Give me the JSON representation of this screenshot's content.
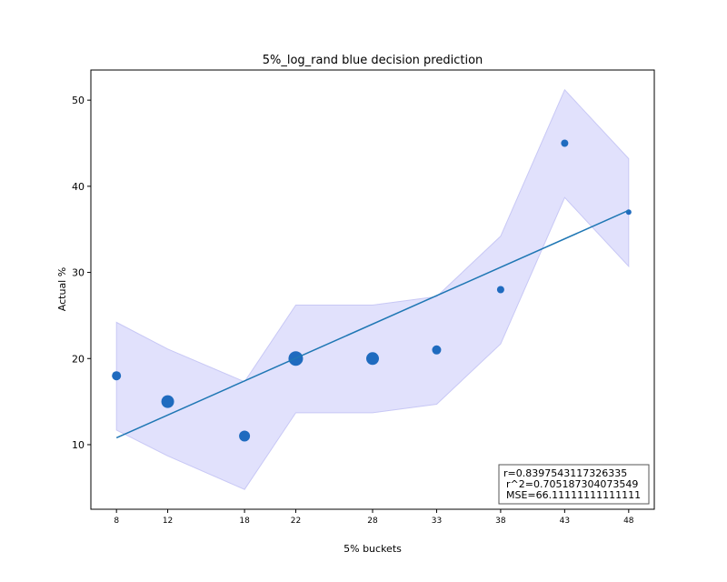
{
  "chart_data": {
    "type": "scatter",
    "title": "5%_log_rand blue decision prediction",
    "xlabel": "5% buckets",
    "ylabel": "Actual %",
    "xlim": [
      6,
      50
    ],
    "ylim": [
      2.5,
      53.5
    ],
    "x_ticks": [
      8,
      12,
      18,
      22,
      28,
      33,
      38,
      43,
      48
    ],
    "y_ticks": [
      10,
      20,
      30,
      40,
      50
    ],
    "points": [
      {
        "x": 8,
        "y": 18,
        "size": 5
      },
      {
        "x": 12,
        "y": 15,
        "size": 7
      },
      {
        "x": 18,
        "y": 11,
        "size": 6
      },
      {
        "x": 22,
        "y": 20,
        "size": 8
      },
      {
        "x": 28,
        "y": 20,
        "size": 7
      },
      {
        "x": 33,
        "y": 21,
        "size": 5
      },
      {
        "x": 38,
        "y": 28,
        "size": 4
      },
      {
        "x": 43,
        "y": 45,
        "size": 4
      },
      {
        "x": 48,
        "y": 37,
        "size": 3
      }
    ],
    "fit_line": {
      "x": [
        8,
        48
      ],
      "y": [
        10.8,
        37.2
      ]
    },
    "band": {
      "x": [
        8,
        12,
        18,
        22,
        28,
        33,
        38,
        43,
        48
      ],
      "lower": [
        11.7,
        8.7,
        4.8,
        13.7,
        13.7,
        14.7,
        21.7,
        38.7,
        30.7
      ],
      "upper": [
        24.2,
        21.1,
        17.3,
        26.2,
        26.2,
        27.2,
        34.2,
        51.2,
        43.2
      ]
    },
    "stats_box": {
      "r": "r=0.8397543117326335",
      "r2": "r^2=0.705187304073549",
      "mse": "MSE=66.11111111111111"
    },
    "colors": {
      "points": "#1f6bbf",
      "line": "#1f77b4",
      "band": "#e1e1fc",
      "band_edge": "#c8c8f5"
    }
  }
}
